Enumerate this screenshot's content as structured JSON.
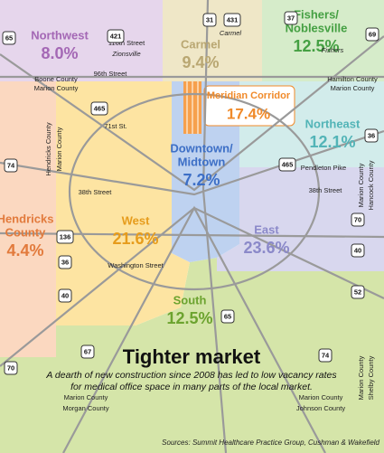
{
  "title": "Tighter market",
  "description": [
    "A dearth of new construction since 2008 has led to low vacancy rates",
    "for medical office space in many parts of the local market."
  ],
  "source": "Sources: Summit Healthcare Practice Group, Cushman & Wakefield",
  "regions": [
    {
      "name": [
        "Northwest"
      ],
      "rate": "8.0%"
    },
    {
      "name": [
        "Carmel"
      ],
      "rate": "9.4%"
    },
    {
      "name": [
        "Fishers/",
        "Noblesville"
      ],
      "rate": "12.5%"
    },
    {
      "name": [
        "Meridian Corridor"
      ],
      "rate": "17.4%"
    },
    {
      "name": [
        "Northeast"
      ],
      "rate": "12.1%"
    },
    {
      "name": [
        "Downtown/",
        "Midtown"
      ],
      "rate": "7.2%"
    },
    {
      "name": [
        "Hendricks",
        "County"
      ],
      "rate": "4.4%"
    },
    {
      "name": [
        "West"
      ],
      "rate": "21.6%"
    },
    {
      "name": [
        "East"
      ],
      "rate": "23.6%"
    },
    {
      "name": [
        "South"
      ],
      "rate": "12.5%"
    }
  ],
  "places": [
    "Zionsville",
    "116th Street",
    "Carmel",
    "Fishers",
    "96th Street",
    "Boone County",
    "Marion County",
    "Hamilton County",
    "Marion County",
    "71st St.",
    "38th Street",
    "38th Street",
    "Pendleton Pike",
    "Washington Street",
    "Hendricks County",
    "Marion County",
    "Marion County",
    "Hancock County",
    "Marion County",
    "Shelby County",
    "Marion County",
    "Morgan County",
    "Marion County",
    "Johnson County"
  ],
  "shields": [
    "65",
    "421",
    "31",
    "431",
    "37",
    "69",
    "465",
    "465",
    "74",
    "136",
    "36",
    "40",
    "67",
    "70",
    "65",
    "36",
    "70",
    "40",
    "52",
    "74"
  ]
}
